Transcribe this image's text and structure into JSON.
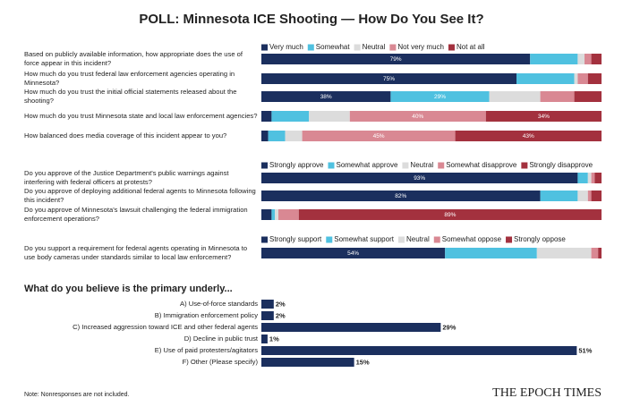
{
  "title": "POLL: Minnesota ICE Shooting — How Do You See It?",
  "note": "Note: Nonresponses are not included.",
  "source": "THE EPOCH TIMES",
  "chart_data": [
    {
      "type": "stacked-bar",
      "xlim": [
        0,
        100
      ],
      "categories": [
        "Based on publicly available information, how appropriate does the use of force appear in this incident?",
        "How much do you trust federal law enforcement agencies operating in Minnesota?",
        "How much do you trust the initial official statements released about the shooting?",
        "How much do you trust Minnesota state and local law enforcement agencies?",
        "How balanced does media coverage of this incident appear to you?"
      ],
      "series": [
        {
          "name": "Very much",
          "color": "#1b2f5e",
          "values": [
            79,
            75,
            38,
            3,
            2
          ],
          "value_labels": [
            "79%",
            "75%",
            "38%",
            null,
            null
          ]
        },
        {
          "name": "Somewhat",
          "color": "#4fc1e0",
          "values": [
            14,
            17,
            29,
            11,
            5
          ],
          "value_labels": [
            null,
            null,
            "29%",
            null,
            null
          ]
        },
        {
          "name": "Neutral",
          "color": "#dcdcdc",
          "values": [
            2,
            1,
            15,
            12,
            5
          ]
        },
        {
          "name": "Not very much",
          "color": "#d98893",
          "values": [
            2,
            3,
            10,
            40,
            45
          ],
          "value_labels": [
            null,
            null,
            null,
            "40%",
            "45%"
          ]
        },
        {
          "name": "Not at all",
          "color": "#a3313e",
          "values": [
            3,
            4,
            8,
            34,
            43
          ],
          "value_labels": [
            null,
            null,
            null,
            "34%",
            "43%"
          ]
        }
      ]
    },
    {
      "type": "stacked-bar",
      "xlim": [
        0,
        100
      ],
      "categories": [
        "Do you approve of the Justice Department's public warnings against interfering with federal officers at protests?",
        "Do you approve of deploying additional federal agents to Minnesota following this incident?",
        "Do you approve of Minnesota's lawsuit challenging the federal immigration enforcement operations?"
      ],
      "series": [
        {
          "name": "Strongly approve",
          "color": "#1b2f5e",
          "values": [
            93,
            82,
            3
          ],
          "value_labels": [
            "93%",
            "82%",
            null
          ]
        },
        {
          "name": "Somewhat approve",
          "color": "#4fc1e0",
          "values": [
            3,
            11,
            1
          ]
        },
        {
          "name": "Neutral",
          "color": "#dcdcdc",
          "values": [
            1,
            3,
            1
          ]
        },
        {
          "name": "Somewhat disapprove",
          "color": "#d98893",
          "values": [
            1,
            1,
            6
          ]
        },
        {
          "name": "Strongly disapprove",
          "color": "#a3313e",
          "values": [
            2,
            3,
            89
          ],
          "value_labels": [
            null,
            null,
            "89%"
          ]
        }
      ]
    },
    {
      "type": "stacked-bar",
      "xlim": [
        0,
        100
      ],
      "categories": [
        "Do you support a requirement for federal agents operating in Minnesota to use body cameras under standards similar to local law enforcement?"
      ],
      "series": [
        {
          "name": "Strongly support",
          "color": "#1b2f5e",
          "values": [
            54
          ],
          "value_labels": [
            "54%"
          ]
        },
        {
          "name": "Somewhat support",
          "color": "#4fc1e0",
          "values": [
            27
          ]
        },
        {
          "name": "Neutral",
          "color": "#dcdcdc",
          "values": [
            16
          ]
        },
        {
          "name": "Somewhat oppose",
          "color": "#d98893",
          "values": [
            2
          ]
        },
        {
          "name": "Strongly oppose",
          "color": "#a3313e",
          "values": [
            1
          ]
        }
      ]
    },
    {
      "type": "bar",
      "title": "What do you believe is the primary underly...",
      "xlim": [
        0,
        55
      ],
      "color": "#1b2f5e",
      "categories": [
        "A) Use-of-force standards",
        "B) Immigration enforcement policy",
        "C) Increased aggression toward ICE and other federal agents",
        "D) Decline in public trust",
        "E) Use of paid protesters/agitators",
        "F) Other (Please specify)"
      ],
      "values": [
        2,
        2,
        29,
        1,
        51,
        15
      ],
      "value_labels": [
        "2%",
        "2%",
        "29%",
        "1%",
        "51%",
        "15%"
      ]
    }
  ]
}
